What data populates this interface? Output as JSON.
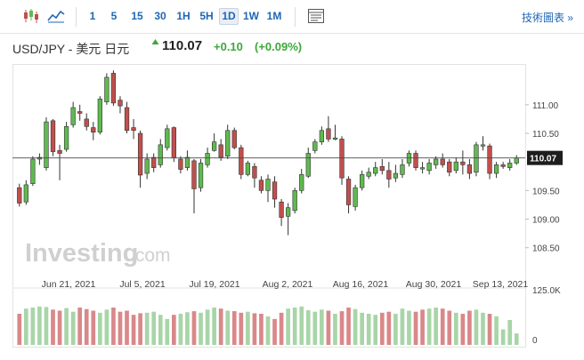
{
  "toolbar": {
    "timeframes": [
      "1",
      "5",
      "15",
      "30",
      "1H",
      "5H",
      "1D",
      "1W",
      "1M"
    ],
    "active_timeframe": "1D",
    "tech_chart_link": "技術圖表 »",
    "icons": [
      "candlestick-chart-icon",
      "area-chart-icon",
      "indicators-panel-icon"
    ]
  },
  "quote": {
    "title": "USD/JPY - 美元 日元",
    "price": "110.07",
    "change": "+0.10",
    "change_pct": "(+0.09%)",
    "direction": "up",
    "color_up": "#3da83a"
  },
  "watermark": {
    "brand": "Investing",
    "suffix": ".com"
  },
  "colors": {
    "bull": "#5fba4f",
    "bear": "#c0504d",
    "vol_bull": "#a8d5a8",
    "vol_bear": "#d9888a",
    "price_tag": "#1d1d1d"
  },
  "chart_data": {
    "type": "candlestick",
    "y_axis": {
      "ticks": [
        "111.00",
        "110.50",
        "110.07",
        "109.50",
        "109.00",
        "108.50"
      ],
      "range": [
        108.2,
        111.65
      ]
    },
    "last_price": "110.07",
    "x_axis": {
      "labels": [
        "Jun 21, 2021",
        "Jul 5, 2021",
        "Jul 19, 2021",
        "Aug 2, 2021",
        "Aug 16, 2021",
        "Aug 30, 2021",
        "Sep 13, 2021"
      ]
    },
    "volume_axis": {
      "ticks": [
        "125.0K",
        "0"
      ],
      "max": 125
    },
    "candles": [
      [
        109.55,
        109.28,
        109.62,
        109.22
      ],
      [
        109.3,
        109.6,
        109.68,
        109.25
      ],
      [
        109.62,
        110.05,
        110.1,
        109.58
      ],
      [
        110.05,
        110.08,
        110.15,
        109.95
      ],
      [
        109.9,
        110.7,
        110.78,
        109.85
      ],
      [
        110.72,
        110.18,
        110.75,
        110.1
      ],
      [
        110.2,
        110.15,
        110.3,
        109.68
      ],
      [
        110.22,
        110.62,
        110.7,
        110.18
      ],
      [
        110.65,
        110.95,
        111.05,
        110.6
      ],
      [
        110.88,
        110.85,
        111.0,
        110.72
      ],
      [
        110.75,
        110.62,
        110.85,
        110.55
      ],
      [
        110.6,
        110.52,
        110.7,
        110.38
      ],
      [
        110.52,
        111.1,
        111.15,
        110.48
      ],
      [
        111.05,
        111.48,
        111.55,
        111.0
      ],
      [
        111.55,
        111.03,
        111.6,
        110.98
      ],
      [
        111.08,
        110.98,
        111.15,
        110.85
      ],
      [
        110.95,
        110.55,
        111.05,
        110.5
      ],
      [
        110.6,
        110.55,
        110.75,
        110.4
      ],
      [
        110.5,
        109.77,
        110.55,
        109.55
      ],
      [
        109.8,
        110.05,
        110.15,
        109.7
      ],
      [
        110.08,
        109.9,
        110.15,
        109.82
      ],
      [
        109.95,
        110.3,
        110.4,
        109.9
      ],
      [
        110.25,
        110.58,
        110.65,
        110.2
      ],
      [
        110.6,
        110.07,
        110.62,
        110.0
      ],
      [
        110.05,
        109.87,
        110.1,
        109.8
      ],
      [
        109.9,
        110.08,
        110.2,
        109.85
      ],
      [
        110.02,
        109.53,
        110.05,
        109.1
      ],
      [
        109.55,
        109.98,
        110.05,
        109.48
      ],
      [
        109.95,
        110.15,
        110.25,
        109.9
      ],
      [
        110.2,
        110.35,
        110.5,
        110.18
      ],
      [
        110.3,
        110.08,
        110.4,
        110.02
      ],
      [
        110.1,
        110.55,
        110.65,
        110.05
      ],
      [
        110.55,
        110.25,
        110.6,
        110.22
      ],
      [
        110.25,
        109.78,
        110.3,
        109.7
      ],
      [
        109.78,
        109.98,
        110.02,
        109.75
      ],
      [
        109.92,
        109.72,
        109.98,
        109.55
      ],
      [
        109.68,
        109.5,
        109.75,
        109.45
      ],
      [
        109.5,
        109.7,
        109.78,
        109.3
      ],
      [
        109.65,
        109.35,
        109.75,
        109.2
      ],
      [
        109.3,
        109.03,
        109.35,
        108.88
      ],
      [
        109.05,
        109.2,
        109.28,
        108.72
      ],
      [
        109.15,
        109.5,
        109.55,
        109.1
      ],
      [
        109.5,
        109.78,
        109.88,
        109.45
      ],
      [
        109.75,
        110.15,
        110.25,
        109.72
      ],
      [
        110.2,
        110.35,
        110.4,
        110.15
      ],
      [
        110.35,
        110.55,
        110.62,
        110.3
      ],
      [
        110.58,
        110.4,
        110.8,
        110.35
      ],
      [
        110.4,
        110.42,
        110.65,
        110.38
      ],
      [
        110.4,
        109.72,
        110.45,
        109.6
      ],
      [
        109.7,
        109.25,
        109.75,
        109.1
      ],
      [
        109.22,
        109.55,
        109.6,
        109.15
      ],
      [
        109.55,
        109.78,
        109.85,
        109.5
      ],
      [
        109.75,
        109.82,
        109.9,
        109.7
      ],
      [
        109.8,
        109.9,
        110.0,
        109.75
      ],
      [
        109.92,
        109.85,
        110.05,
        109.78
      ],
      [
        109.85,
        109.7,
        110.0,
        109.55
      ],
      [
        109.72,
        109.8,
        109.95,
        109.65
      ],
      [
        109.78,
        109.95,
        110.05,
        109.72
      ],
      [
        109.98,
        110.15,
        110.2,
        109.92
      ],
      [
        110.15,
        109.9,
        110.2,
        109.85
      ],
      [
        109.9,
        109.9,
        110.0,
        109.8
      ],
      [
        109.85,
        109.98,
        110.05,
        109.78
      ],
      [
        109.95,
        110.05,
        110.1,
        109.88
      ],
      [
        110.05,
        109.95,
        110.15,
        109.9
      ],
      [
        110.0,
        109.82,
        110.05,
        109.75
      ],
      [
        109.85,
        110.0,
        110.08,
        109.8
      ],
      [
        110.0,
        109.95,
        110.2,
        109.78
      ],
      [
        109.95,
        109.8,
        110.05,
        109.7
      ],
      [
        109.82,
        110.3,
        110.35,
        109.75
      ],
      [
        110.3,
        110.3,
        110.45,
        110.2
      ],
      [
        110.28,
        109.8,
        110.32,
        109.7
      ],
      [
        109.8,
        109.95,
        110.0,
        109.72
      ],
      [
        109.95,
        109.92,
        110.0,
        109.88
      ],
      [
        109.9,
        109.98,
        110.05,
        109.85
      ],
      [
        109.98,
        110.07,
        110.12,
        109.95
      ]
    ],
    "volumes": [
      [
        60,
        0
      ],
      [
        70,
        1
      ],
      [
        72,
        1
      ],
      [
        74,
        1
      ],
      [
        73,
        1
      ],
      [
        68,
        0
      ],
      [
        66,
        0
      ],
      [
        71,
        1
      ],
      [
        64,
        1
      ],
      [
        72,
        0
      ],
      [
        69,
        0
      ],
      [
        66,
        0
      ],
      [
        62,
        1
      ],
      [
        68,
        1
      ],
      [
        72,
        0
      ],
      [
        64,
        0
      ],
      [
        66,
        0
      ],
      [
        58,
        0
      ],
      [
        61,
        0
      ],
      [
        62,
        1
      ],
      [
        64,
        1
      ],
      [
        58,
        1
      ],
      [
        50,
        1
      ],
      [
        58,
        0
      ],
      [
        60,
        1
      ],
      [
        63,
        1
      ],
      [
        65,
        0
      ],
      [
        62,
        1
      ],
      [
        68,
        1
      ],
      [
        72,
        1
      ],
      [
        70,
        0
      ],
      [
        66,
        1
      ],
      [
        65,
        0
      ],
      [
        62,
        0
      ],
      [
        64,
        1
      ],
      [
        61,
        0
      ],
      [
        60,
        0
      ],
      [
        55,
        1
      ],
      [
        50,
        0
      ],
      [
        62,
        0
      ],
      [
        70,
        1
      ],
      [
        72,
        1
      ],
      [
        74,
        1
      ],
      [
        67,
        1
      ],
      [
        64,
        1
      ],
      [
        68,
        1
      ],
      [
        66,
        0
      ],
      [
        60,
        1
      ],
      [
        65,
        0
      ],
      [
        72,
        0
      ],
      [
        69,
        1
      ],
      [
        62,
        1
      ],
      [
        60,
        1
      ],
      [
        58,
        1
      ],
      [
        62,
        0
      ],
      [
        64,
        0
      ],
      [
        60,
        1
      ],
      [
        70,
        1
      ],
      [
        66,
        1
      ],
      [
        64,
        0
      ],
      [
        68,
        0
      ],
      [
        70,
        1
      ],
      [
        72,
        1
      ],
      [
        70,
        0
      ],
      [
        66,
        0
      ],
      [
        62,
        1
      ],
      [
        60,
        0
      ],
      [
        66,
        0
      ],
      [
        68,
        1
      ],
      [
        62,
        1
      ],
      [
        60,
        0
      ],
      [
        55,
        1
      ],
      [
        30,
        1
      ],
      [
        48,
        1
      ],
      [
        22,
        1
      ]
    ]
  }
}
